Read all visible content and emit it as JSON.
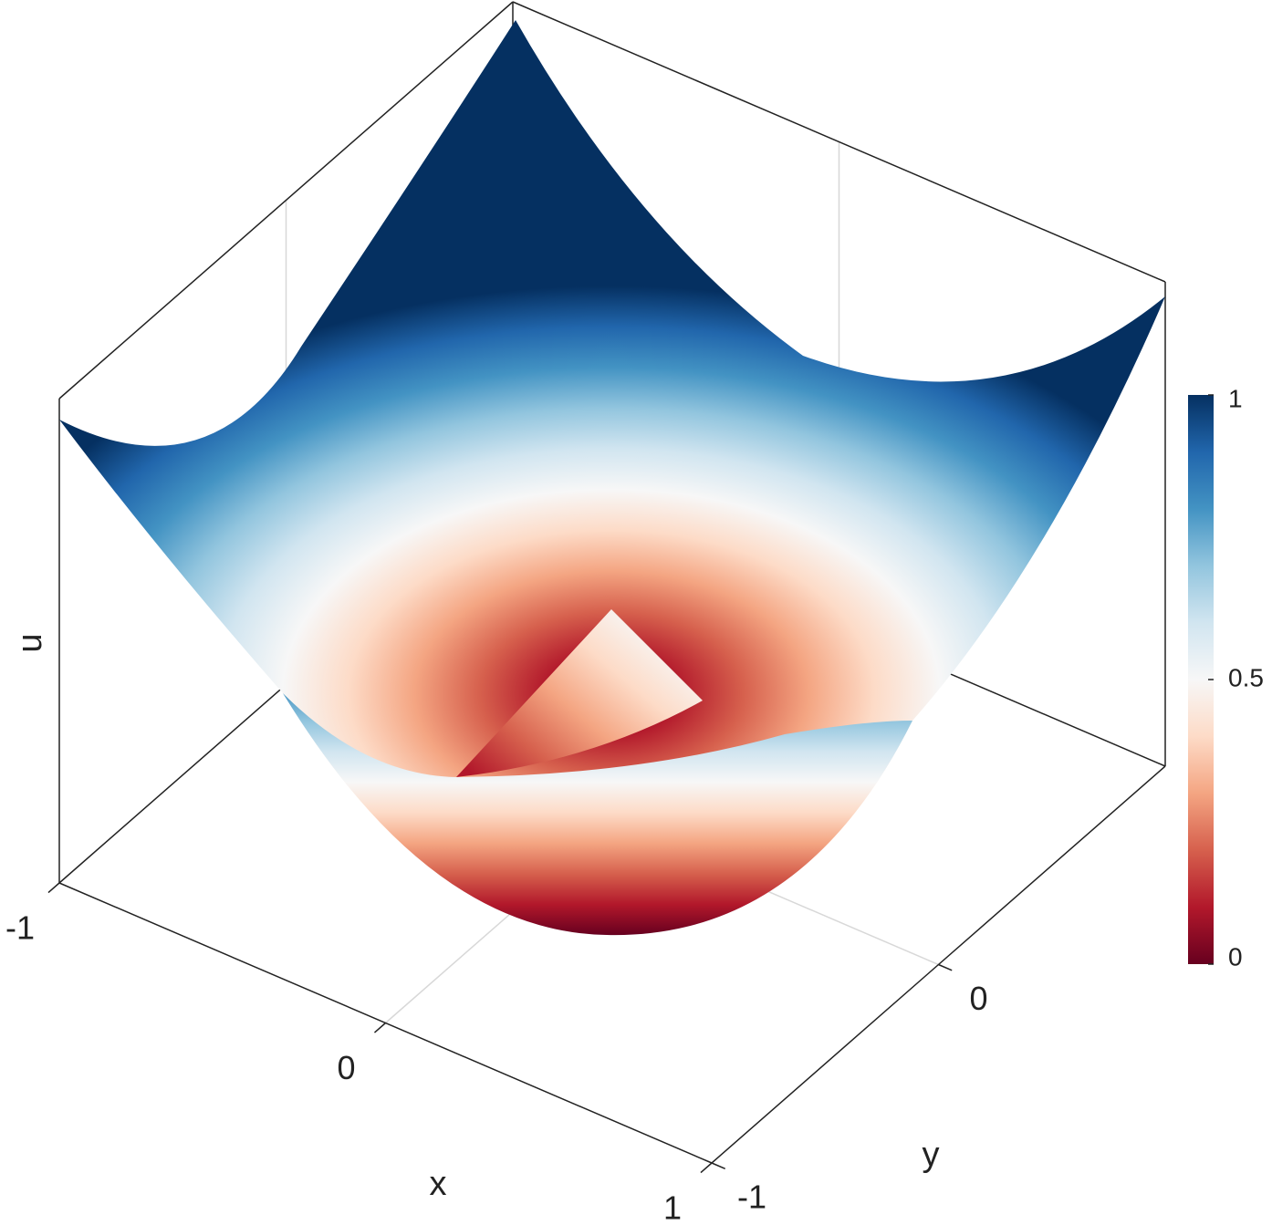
{
  "chart_data": {
    "type": "surface",
    "xlabel": "x",
    "ylabel": "y",
    "zlabel": "u",
    "xlim": [
      -1,
      1
    ],
    "ylim": [
      -1,
      1
    ],
    "xticks": [
      -1,
      0,
      1
    ],
    "yticks": [
      -1,
      0
    ],
    "grid": true,
    "colorbar": {
      "lim": [
        0,
        1
      ],
      "ticks": [
        0,
        0.5,
        1
      ],
      "colors": [
        "#67001f",
        "#b2182b",
        "#d6604d",
        "#f4a582",
        "#fddbc7",
        "#f7f7f7",
        "#d1e5f0",
        "#92c5de",
        "#4393c3",
        "#2166ac",
        "#053061"
      ]
    }
  }
}
